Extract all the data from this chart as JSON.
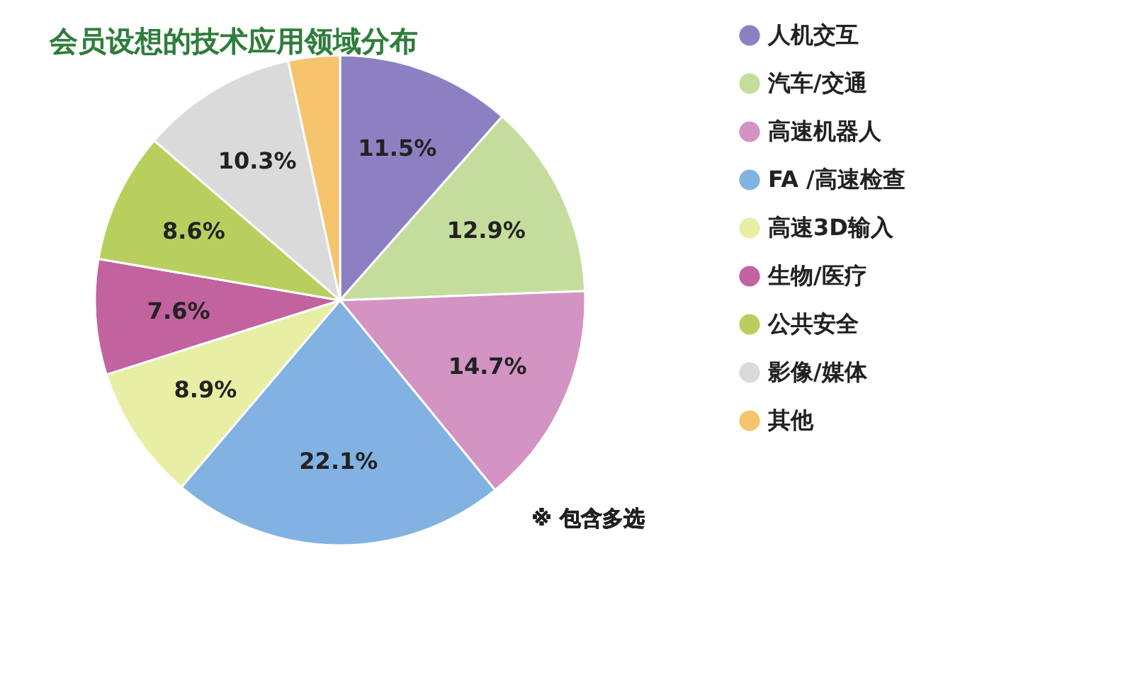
{
  "chart_data": {
    "type": "pie",
    "title": "会员设想的技术应用领域分布",
    "categories": [
      "人机交互",
      "汽车/交通",
      "高速机器人",
      "FA /高速检查",
      "高速3D输入",
      "生物/医疗",
      "公共安全",
      "影像/媒体",
      "其他"
    ],
    "values": [
      11.5,
      12.9,
      14.7,
      22.1,
      8.9,
      7.6,
      8.6,
      10.3,
      3.4
    ],
    "value_labels": [
      "11.5%",
      "12.9%",
      "14.7%",
      "22.1%",
      "8.9%",
      "7.6%",
      "8.6%",
      "10.3%",
      null
    ],
    "colors": [
      "#8d80c2",
      "#c5dd9c",
      "#d393c3",
      "#82b2e2",
      "#e8eea3",
      "#c2629f",
      "#b8cf5e",
      "#dadada",
      "#f6c46c"
    ],
    "legend": "top right",
    "annotations": [
      "※ 包含多选"
    ]
  }
}
